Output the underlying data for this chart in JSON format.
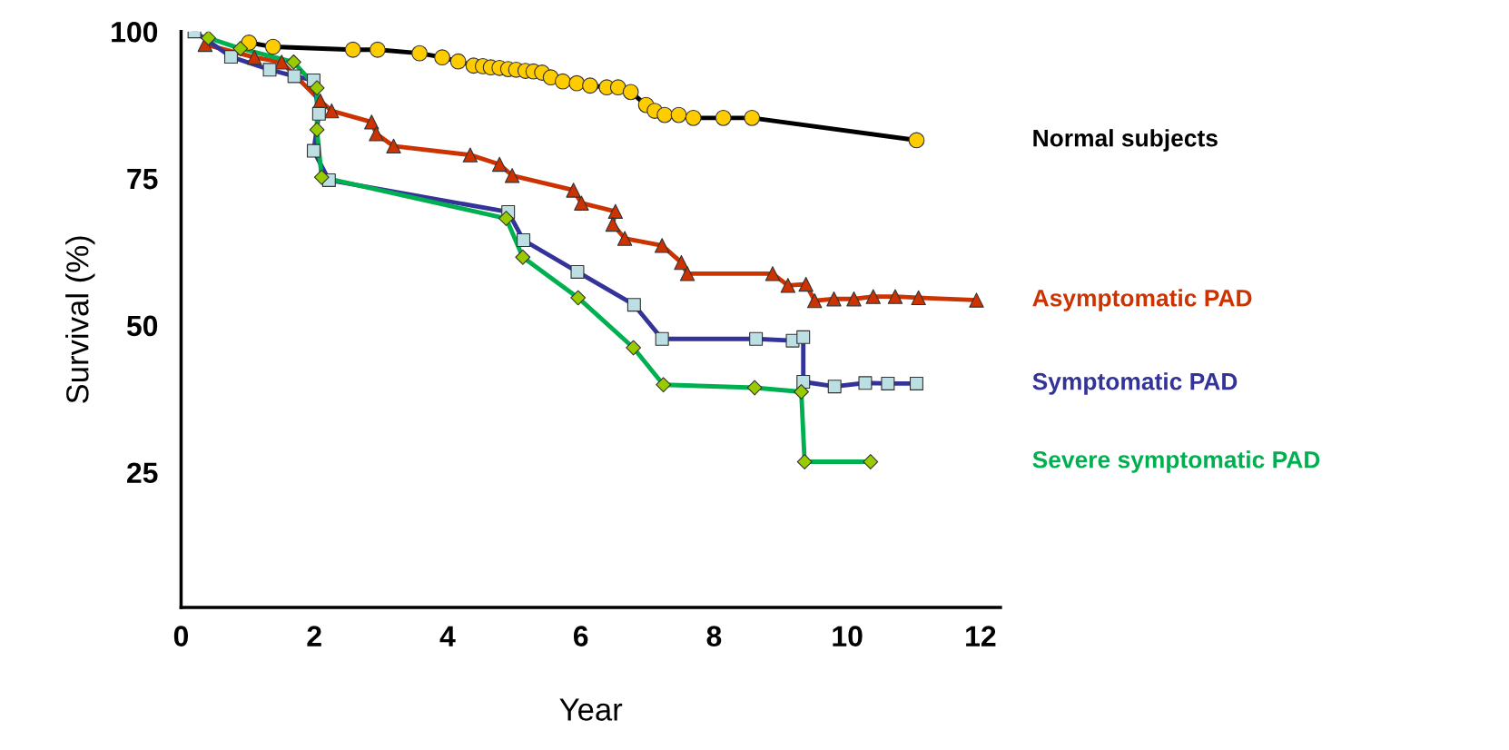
{
  "chart_data": {
    "type": "line",
    "xlabel": "Year",
    "ylabel": "Survival (%)",
    "xlim": [
      0,
      12.3
    ],
    "ylim": [
      2,
      100
    ],
    "xticks": [
      0,
      2,
      4,
      6,
      8,
      10,
      12
    ],
    "yticks": [
      25,
      50,
      75,
      100
    ],
    "grid": false,
    "legend": false,
    "line_style": "solid",
    "series": [
      {
        "name": "Normal subjects",
        "color": "#000000",
        "marker": "circle",
        "x": [
          1.02,
          1.38,
          2.58,
          2.95,
          3.58,
          3.92,
          4.16,
          4.39,
          4.53,
          4.65,
          4.78,
          4.91,
          5.03,
          5.17,
          5.29,
          5.42,
          5.55,
          5.73,
          5.94,
          6.14,
          6.39,
          6.56,
          6.75,
          6.98,
          7.11,
          7.26,
          7.47,
          7.69,
          8.14,
          8.57,
          11.04
        ],
        "values": [
          98.1,
          97.4,
          96.9,
          96.9,
          96.3,
          95.6,
          94.9,
          94.2,
          94.1,
          93.9,
          93.8,
          93.6,
          93.5,
          93.3,
          93.2,
          93.0,
          92.2,
          91.5,
          91.2,
          90.8,
          90.5,
          90.5,
          89.7,
          87.5,
          86.5,
          85.8,
          85.8,
          85.3,
          85.3,
          85.3,
          81.5
        ],
        "colors": [
          "#ffcc00",
          "#ffcc00",
          "#ffcc00",
          "#ffcc00",
          "#ffcc00",
          "#ffcc00",
          "#ffcc00",
          "#ffcc00",
          "#ffcc00",
          "#ffcc00",
          "#ffcc00",
          "#ffcc00",
          "#ffcc00",
          "#ffcc00",
          "#ffcc00",
          "#ffcc00",
          "#ffcc00",
          "#ffcc00",
          "#ffcc00",
          "#ffcc00",
          "#ffcc00",
          "#ffcc00",
          "#ffcc00",
          "#ffcc00",
          "#ffcc00",
          "#ffcc00",
          "#ffcc00",
          "#ffcc00",
          "#ffcc00",
          "#ffcc00",
          "#ffcc00"
        ]
      },
      {
        "name": "Asymptomatic PAD",
        "color": "#cc3300",
        "marker": "triangle",
        "x": [
          0.36,
          1.1,
          1.51,
          2.09,
          2.26,
          2.86,
          2.93,
          3.19,
          4.34,
          4.78,
          4.97,
          5.89,
          6.01,
          6.52,
          6.48,
          6.66,
          7.22,
          7.51,
          7.6,
          8.88,
          9.11,
          9.38,
          9.51,
          9.8,
          10.1,
          10.39,
          10.72,
          11.07,
          11.94
        ],
        "values": [
          97.8,
          95.6,
          94.8,
          88.2,
          86.5,
          84.6,
          82.6,
          80.5,
          79.0,
          77.4,
          75.5,
          73.0,
          70.8,
          69.4,
          67.2,
          64.8,
          63.6,
          60.7,
          58.8,
          58.8,
          56.8,
          57.0,
          54.2,
          54.5,
          54.5,
          54.9,
          54.9,
          54.7,
          54.3
        ],
        "colors": [
          "#cc3300",
          "#cc3300",
          "#cc3300",
          "#cc3300",
          "#cc3300",
          "#cc3300",
          "#cc3300",
          "#cc3300",
          "#cc3300",
          "#cc3300",
          "#cc3300",
          "#cc3300",
          "#cc3300",
          "#cc3300",
          "#cc3300",
          "#cc3300",
          "#cc3300",
          "#cc3300",
          "#cc3300",
          "#cc3300",
          "#cc3300",
          "#cc3300",
          "#cc3300",
          "#cc3300",
          "#cc3300",
          "#cc3300",
          "#cc3300",
          "#cc3300",
          "#cc3300"
        ]
      },
      {
        "name": "Symptomatic PAD",
        "color": "#333399",
        "marker": "square",
        "x": [
          0.2,
          0.75,
          1.33,
          1.7,
          1.99,
          2.07,
          1.99,
          2.22,
          4.91,
          5.14,
          5.95,
          6.8,
          7.22,
          8.63,
          9.18,
          9.34,
          9.34,
          9.81,
          10.27,
          10.61,
          11.04
        ],
        "values": [
          100,
          95.7,
          93.5,
          92.4,
          91.7,
          86.0,
          79.7,
          74.7,
          69.3,
          64.5,
          59.1,
          53.5,
          47.7,
          47.7,
          47.4,
          48.0,
          40.4,
          39.6,
          40.2,
          40.1,
          40.1
        ],
        "colors": [
          "#bbdfe3",
          "#bbdfe3",
          "#bbdfe3",
          "#bbdfe3",
          "#bbdfe3",
          "#bbdfe3",
          "#bbdfe3",
          "#bbdfe3",
          "#bbdfe3",
          "#bbdfe3",
          "#bbdfe3",
          "#bbdfe3",
          "#bbdfe3",
          "#bbdfe3",
          "#bbdfe3",
          "#bbdfe3",
          "#bbdfe3",
          "#bbdfe3",
          "#bbdfe3",
          "#bbdfe3",
          "#bbdfe3"
        ]
      },
      {
        "name": "Severe symptomatic PAD",
        "color": "#00b050",
        "marker": "diamond",
        "x": [
          0.41,
          0.89,
          1.69,
          2.04,
          2.04,
          2.11,
          4.88,
          5.13,
          5.96,
          6.79,
          7.24,
          8.61,
          9.31,
          9.36,
          10.35
        ],
        "values": [
          98.9,
          97.1,
          94.8,
          90.4,
          83.3,
          75.2,
          68.2,
          61.6,
          54.7,
          46.2,
          39.9,
          39.4,
          38.7,
          26.8,
          26.8
        ],
        "colors": [
          "#99cc00",
          "#99cc00",
          "#99cc00",
          "#99cc00",
          "#99cc00",
          "#99cc00",
          "#99cc00",
          "#99cc00",
          "#99cc00",
          "#99cc00",
          "#99cc00",
          "#99cc00",
          "#99cc00",
          "#99cc00",
          "#99cc00"
        ]
      }
    ]
  }
}
